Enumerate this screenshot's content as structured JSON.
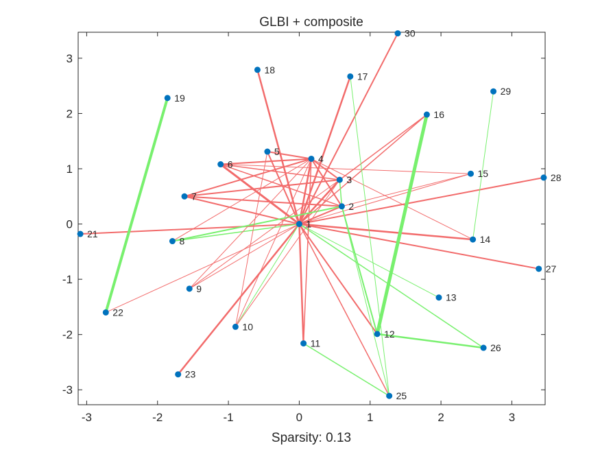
{
  "chart_data": {
    "type": "network-scatter",
    "title": "GLBI + composite",
    "xlabel": "Sparsity: 0.13",
    "ylabel": "",
    "xlim": [
      -3.12,
      3.47
    ],
    "ylim": [
      -3.27,
      3.47
    ],
    "xticks": [
      -3,
      -2,
      -1,
      0,
      1,
      2,
      3
    ],
    "yticks": [
      -3,
      -2,
      -1,
      0,
      1,
      2,
      3
    ],
    "xtick_labels": [
      "-3",
      "-2",
      "-1",
      "0",
      "1",
      "2",
      "3"
    ],
    "ytick_labels": [
      "-3",
      "-2",
      "-1",
      "0",
      "1",
      "2",
      "3"
    ],
    "grid": false,
    "node_color": "#0072bd",
    "colors": {
      "negative": "#f26b6b",
      "positive": "#78f06e"
    },
    "nodes": [
      {
        "id": "1",
        "x": 0.0,
        "y": 0.0
      },
      {
        "id": "2",
        "x": 0.6,
        "y": 0.32
      },
      {
        "id": "3",
        "x": 0.57,
        "y": 0.8
      },
      {
        "id": "4",
        "x": 0.17,
        "y": 1.18
      },
      {
        "id": "5",
        "x": -0.45,
        "y": 1.31
      },
      {
        "id": "6",
        "x": -1.11,
        "y": 1.08
      },
      {
        "id": "7",
        "x": -1.62,
        "y": 0.5
      },
      {
        "id": "8",
        "x": -1.79,
        "y": -0.31
      },
      {
        "id": "9",
        "x": -1.55,
        "y": -1.17
      },
      {
        "id": "10",
        "x": -0.9,
        "y": -1.86
      },
      {
        "id": "11",
        "x": 0.06,
        "y": -2.16
      },
      {
        "id": "12",
        "x": 1.1,
        "y": -1.99
      },
      {
        "id": "13",
        "x": 1.97,
        "y": -1.33
      },
      {
        "id": "14",
        "x": 2.45,
        "y": -0.28
      },
      {
        "id": "15",
        "x": 2.42,
        "y": 0.91
      },
      {
        "id": "16",
        "x": 1.8,
        "y": 1.98
      },
      {
        "id": "17",
        "x": 0.72,
        "y": 2.67
      },
      {
        "id": "18",
        "x": -0.59,
        "y": 2.79
      },
      {
        "id": "19",
        "x": -1.86,
        "y": 2.28
      },
      {
        "id": "21",
        "x": -3.09,
        "y": -0.18
      },
      {
        "id": "22",
        "x": -2.73,
        "y": -1.6
      },
      {
        "id": "23",
        "x": -1.71,
        "y": -2.72
      },
      {
        "id": "25",
        "x": 1.27,
        "y": -3.11
      },
      {
        "id": "26",
        "x": 2.6,
        "y": -2.24
      },
      {
        "id": "27",
        "x": 3.38,
        "y": -0.81
      },
      {
        "id": "28",
        "x": 3.45,
        "y": 0.84
      },
      {
        "id": "29",
        "x": 2.74,
        "y": 2.4
      },
      {
        "id": "30",
        "x": 1.39,
        "y": 3.45
      }
    ],
    "edges": [
      {
        "source": "1",
        "target": "30",
        "sign": "negative",
        "weight": 2
      },
      {
        "source": "1",
        "target": "17",
        "sign": "negative",
        "weight": 2.5
      },
      {
        "source": "1",
        "target": "18",
        "sign": "negative",
        "weight": 2.5
      },
      {
        "source": "1",
        "target": "4",
        "sign": "negative",
        "weight": 2.5
      },
      {
        "source": "1",
        "target": "3",
        "sign": "negative",
        "weight": 2.5
      },
      {
        "source": "1",
        "target": "2",
        "sign": "negative",
        "weight": 2
      },
      {
        "source": "1",
        "target": "5",
        "sign": "negative",
        "weight": 2
      },
      {
        "source": "1",
        "target": "6",
        "sign": "negative",
        "weight": 3
      },
      {
        "source": "1",
        "target": "7",
        "sign": "negative",
        "weight": 2
      },
      {
        "source": "1",
        "target": "21",
        "sign": "negative",
        "weight": 2
      },
      {
        "source": "1",
        "target": "28",
        "sign": "negative",
        "weight": 2
      },
      {
        "source": "1",
        "target": "14",
        "sign": "negative",
        "weight": 2.5
      },
      {
        "source": "1",
        "target": "27",
        "sign": "negative",
        "weight": 2
      },
      {
        "source": "1",
        "target": "11",
        "sign": "negative",
        "weight": 2.5
      },
      {
        "source": "1",
        "target": "12",
        "sign": "negative",
        "weight": 2
      },
      {
        "source": "1",
        "target": "25",
        "sign": "negative",
        "weight": 1.5
      },
      {
        "source": "1",
        "target": "16",
        "sign": "negative",
        "weight": 1.5
      },
      {
        "source": "1",
        "target": "23",
        "sign": "negative",
        "weight": 2.5
      },
      {
        "source": "1",
        "target": "22",
        "sign": "negative",
        "weight": 1
      },
      {
        "source": "1",
        "target": "9",
        "sign": "negative",
        "weight": 1
      },
      {
        "source": "1",
        "target": "15",
        "sign": "negative",
        "weight": 1
      },
      {
        "source": "1",
        "target": "13",
        "sign": "positive",
        "weight": 1
      },
      {
        "source": "1",
        "target": "26",
        "sign": "positive",
        "weight": 1.5
      },
      {
        "source": "1",
        "target": "10",
        "sign": "positive",
        "weight": 1
      },
      {
        "source": "1",
        "target": "8",
        "sign": "positive",
        "weight": 1.5
      },
      {
        "source": "4",
        "target": "5",
        "sign": "negative",
        "weight": 2
      },
      {
        "source": "4",
        "target": "6",
        "sign": "negative",
        "weight": 2
      },
      {
        "source": "4",
        "target": "7",
        "sign": "negative",
        "weight": 2
      },
      {
        "source": "4",
        "target": "8",
        "sign": "negative",
        "weight": 1
      },
      {
        "source": "4",
        "target": "9",
        "sign": "negative",
        "weight": 1
      },
      {
        "source": "4",
        "target": "10",
        "sign": "negative",
        "weight": 1
      },
      {
        "source": "4",
        "target": "3",
        "sign": "negative",
        "weight": 2
      },
      {
        "source": "4",
        "target": "2",
        "sign": "negative",
        "weight": 2
      },
      {
        "source": "4",
        "target": "14",
        "sign": "negative",
        "weight": 1
      },
      {
        "source": "4",
        "target": "11",
        "sign": "negative",
        "weight": 1.5
      },
      {
        "source": "6",
        "target": "15",
        "sign": "negative",
        "weight": 1
      },
      {
        "source": "6",
        "target": "3",
        "sign": "negative",
        "weight": 1.5
      },
      {
        "source": "6",
        "target": "2",
        "sign": "negative",
        "weight": 1.5
      },
      {
        "source": "7",
        "target": "3",
        "sign": "negative",
        "weight": 2
      },
      {
        "source": "7",
        "target": "2",
        "sign": "negative",
        "weight": 2
      },
      {
        "source": "8",
        "target": "2",
        "sign": "positive",
        "weight": 2
      },
      {
        "source": "3",
        "target": "2",
        "sign": "positive",
        "weight": 1.5
      },
      {
        "source": "3",
        "target": "16",
        "sign": "negative",
        "weight": 1.5
      },
      {
        "source": "3",
        "target": "9",
        "sign": "negative",
        "weight": 1
      },
      {
        "source": "3",
        "target": "10",
        "sign": "negative",
        "weight": 1
      },
      {
        "source": "2",
        "target": "12",
        "sign": "positive",
        "weight": 2
      },
      {
        "source": "2",
        "target": "25",
        "sign": "positive",
        "weight": 1
      },
      {
        "source": "2",
        "target": "15",
        "sign": "negative",
        "weight": 1
      },
      {
        "source": "10",
        "target": "5",
        "sign": "negative",
        "weight": 1
      },
      {
        "source": "11",
        "target": "25",
        "sign": "positive",
        "weight": 1.5
      },
      {
        "source": "17",
        "target": "25",
        "sign": "positive",
        "weight": 1
      },
      {
        "source": "19",
        "target": "22",
        "sign": "positive",
        "weight": 4
      },
      {
        "source": "16",
        "target": "12",
        "sign": "positive",
        "weight": 5
      },
      {
        "source": "12",
        "target": "26",
        "sign": "positive",
        "weight": 2.5
      },
      {
        "source": "29",
        "target": "14",
        "sign": "positive",
        "weight": 1
      }
    ]
  }
}
